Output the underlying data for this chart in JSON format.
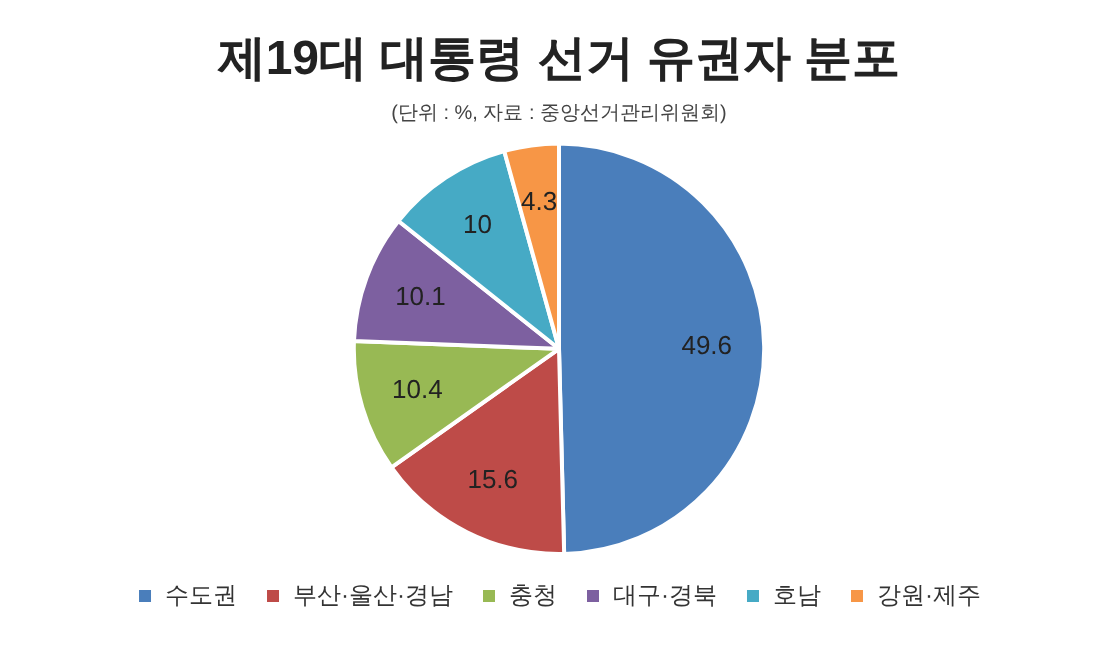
{
  "chart_data": {
    "type": "pie",
    "title": "제19대 대통령 선거 유권자 분포",
    "subtitle": "(단위 : %, 자료 : 중앙선거관리위원회)",
    "categories": [
      "수도권",
      "부산·울산·경남",
      "충청",
      "대구·경북",
      "호남",
      "강원·제주"
    ],
    "values": [
      49.6,
      15.6,
      10.4,
      10.1,
      10,
      4.3
    ],
    "colors": [
      "#4a7ebb",
      "#be4b48",
      "#98b954",
      "#7d60a0",
      "#46aac5",
      "#f79646"
    ],
    "data_labels": true,
    "legend": "bottom"
  }
}
